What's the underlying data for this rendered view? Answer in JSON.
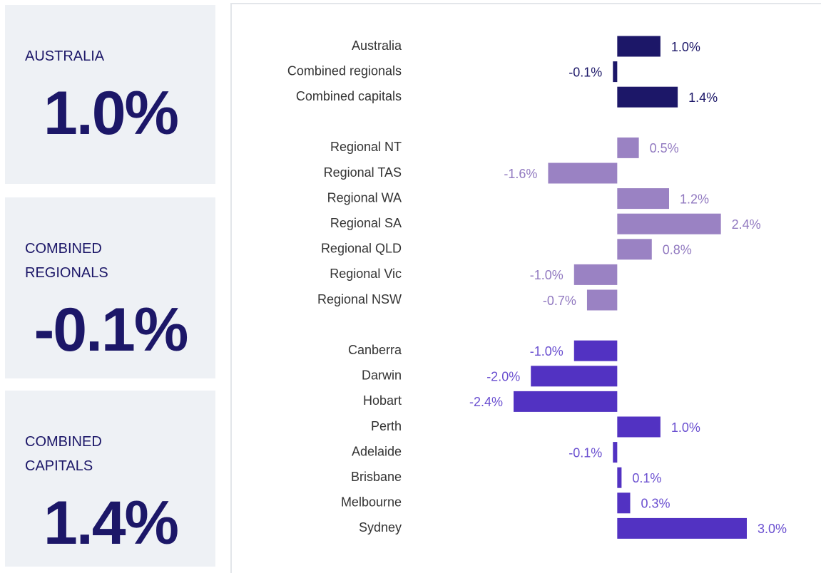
{
  "cards": [
    {
      "label": "AUSTRALIA",
      "value": "1.0%"
    },
    {
      "label": "COMBINED REGIONALS",
      "value": "-0.1%"
    },
    {
      "label": "COMBINED CAPITALS",
      "value": "1.4%"
    }
  ],
  "chart_data": {
    "type": "bar",
    "orientation": "horizontal",
    "groups": [
      {
        "color": "#1c1768",
        "label_color": "#1c1768",
        "categories": [
          "Australia",
          "Combined regionals",
          "Combined capitals"
        ],
        "values": [
          1.0,
          -0.1,
          1.4
        ],
        "value_labels": [
          "1.0%",
          "-0.1%",
          "1.4%"
        ]
      },
      {
        "color": "#9a82c3",
        "label_color": "#9179c0",
        "categories": [
          "Regional NT",
          "Regional TAS",
          "Regional WA",
          "Regional SA",
          "Regional QLD",
          "Regional Vic",
          "Regional NSW"
        ],
        "values": [
          0.5,
          -1.6,
          1.2,
          2.4,
          0.8,
          -1.0,
          -0.7
        ],
        "value_labels": [
          "0.5%",
          "-1.6%",
          "1.2%",
          "2.4%",
          "0.8%",
          "-1.0%",
          "-0.7%"
        ]
      },
      {
        "color": "#5232c2",
        "label_color": "#6a4fd0",
        "categories": [
          "Canberra",
          "Darwin",
          "Hobart",
          "Perth",
          "Adelaide",
          "Brisbane",
          "Melbourne",
          "Sydney"
        ],
        "values": [
          -1.0,
          -2.0,
          -2.4,
          1.0,
          -0.1,
          0.1,
          0.3,
          3.0
        ],
        "value_labels": [
          "-1.0%",
          "-2.0%",
          "-2.4%",
          "1.0%",
          "-0.1%",
          "0.1%",
          "0.3%",
          "3.0%"
        ]
      }
    ]
  }
}
